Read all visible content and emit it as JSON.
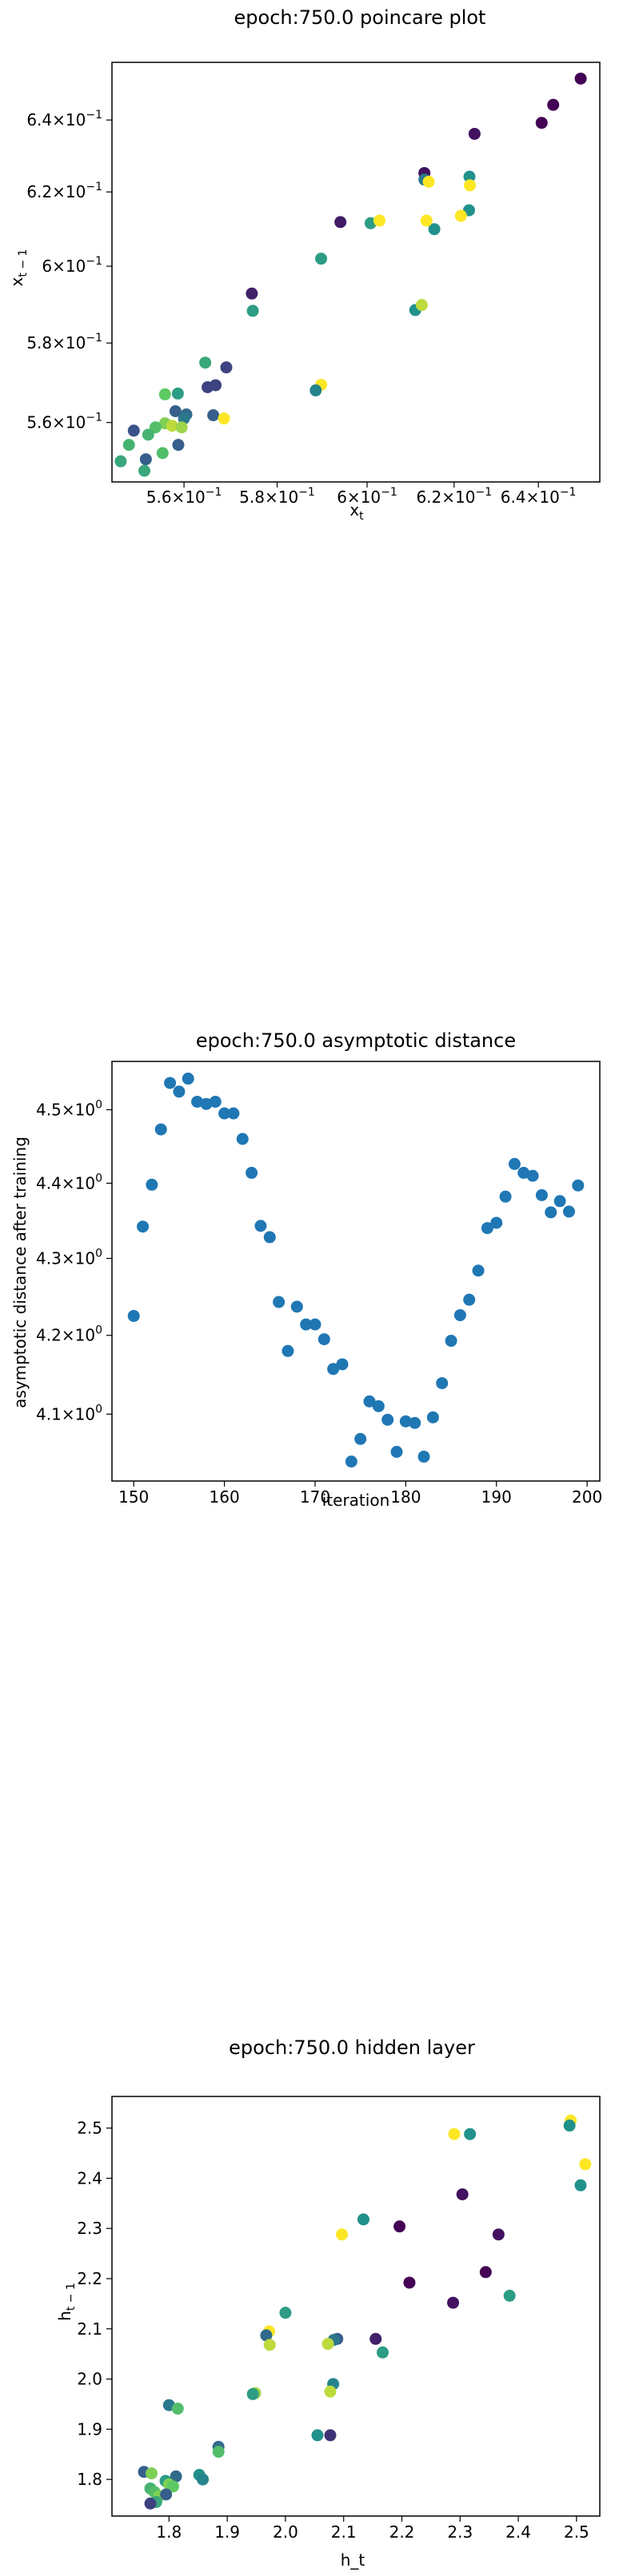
{
  "chart_data": [
    {
      "type": "scatter",
      "title": "epoch:750.0 poincare plot",
      "xlabel": "x_t",
      "ylabel": "x_{t-1}",
      "log_scale": true,
      "xlim": [
        0.545,
        0.655
      ],
      "ylim": [
        0.5455,
        0.6565
      ],
      "xticks": [
        0.56,
        0.58,
        0.6,
        0.62,
        0.64
      ],
      "xtick_labels": [
        "5.6",
        "5.8",
        "6",
        "6.2",
        "6.4"
      ],
      "yticks": [
        0.56,
        0.58,
        0.6,
        0.62,
        0.64
      ],
      "ytick_labels": [
        "5.6",
        "5.8",
        "6",
        "6.2",
        "6.4"
      ],
      "tick_label_base": "10",
      "tick_label_exp": "−1",
      "colormap": [
        "#440154",
        "#3b528b",
        "#21918c",
        "#5ec962",
        "#fde725"
      ],
      "points": [
        {
          "x": 0.6503,
          "y": 0.6518,
          "c": 0.0
        },
        {
          "x": 0.6436,
          "y": 0.6443,
          "c": 0.0
        },
        {
          "x": 0.6408,
          "y": 0.6392,
          "c": 0.0
        },
        {
          "x": 0.6248,
          "y": 0.6361,
          "c": 0.05
        },
        {
          "x": 0.6131,
          "y": 0.6252,
          "c": 0.05
        },
        {
          "x": 0.594,
          "y": 0.6118,
          "c": 0.08
        },
        {
          "x": 0.5745,
          "y": 0.5928,
          "c": 0.1
        },
        {
          "x": 0.6131,
          "y": 0.6234,
          "c": 0.4
        },
        {
          "x": 0.6236,
          "y": 0.6242,
          "c": 0.5
        },
        {
          "x": 0.6235,
          "y": 0.615,
          "c": 0.5
        },
        {
          "x": 0.6154,
          "y": 0.6099,
          "c": 0.5
        },
        {
          "x": 0.6008,
          "y": 0.6115,
          "c": 0.55
        },
        {
          "x": 0.5897,
          "y": 0.602,
          "c": 0.55
        },
        {
          "x": 0.5747,
          "y": 0.5883,
          "c": 0.55
        },
        {
          "x": 0.611,
          "y": 0.5885,
          "c": 0.5
        },
        {
          "x": 0.6125,
          "y": 0.5898,
          "c": 0.9
        },
        {
          "x": 0.6141,
          "y": 0.6228,
          "c": 1.0
        },
        {
          "x": 0.6237,
          "y": 0.6218,
          "c": 1.0
        },
        {
          "x": 0.6216,
          "y": 0.6135,
          "c": 1.0
        },
        {
          "x": 0.6136,
          "y": 0.6122,
          "c": 1.0
        },
        {
          "x": 0.6028,
          "y": 0.6122,
          "c": 1.0
        },
        {
          "x": 0.5897,
          "y": 0.5694,
          "c": 1.0
        },
        {
          "x": 0.5885,
          "y": 0.568,
          "c": 0.45
        },
        {
          "x": 0.569,
          "y": 0.5738,
          "c": 0.2
        },
        {
          "x": 0.5667,
          "y": 0.5693,
          "c": 0.2
        },
        {
          "x": 0.565,
          "y": 0.5688,
          "c": 0.2
        },
        {
          "x": 0.5645,
          "y": 0.575,
          "c": 0.6
        },
        {
          "x": 0.5662,
          "y": 0.5618,
          "c": 0.3
        },
        {
          "x": 0.5685,
          "y": 0.561,
          "c": 1.0
        },
        {
          "x": 0.5587,
          "y": 0.5672,
          "c": 0.55
        },
        {
          "x": 0.556,
          "y": 0.567,
          "c": 0.75
        },
        {
          "x": 0.5582,
          "y": 0.5628,
          "c": 0.3
        },
        {
          "x": 0.5605,
          "y": 0.562,
          "c": 0.35
        },
        {
          "x": 0.56,
          "y": 0.561,
          "c": 0.4
        },
        {
          "x": 0.556,
          "y": 0.5598,
          "c": 0.8
        },
        {
          "x": 0.5575,
          "y": 0.5592,
          "c": 0.9
        },
        {
          "x": 0.5595,
          "y": 0.5588,
          "c": 0.85
        },
        {
          "x": 0.554,
          "y": 0.5588,
          "c": 0.7
        },
        {
          "x": 0.5525,
          "y": 0.557,
          "c": 0.65
        },
        {
          "x": 0.5495,
          "y": 0.558,
          "c": 0.25
        },
        {
          "x": 0.5588,
          "y": 0.5545,
          "c": 0.3
        },
        {
          "x": 0.5555,
          "y": 0.5525,
          "c": 0.7
        },
        {
          "x": 0.552,
          "y": 0.551,
          "c": 0.3
        },
        {
          "x": 0.5485,
          "y": 0.5545,
          "c": 0.65
        },
        {
          "x": 0.5468,
          "y": 0.5505,
          "c": 0.6
        },
        {
          "x": 0.5517,
          "y": 0.5482,
          "c": 0.6
        }
      ]
    },
    {
      "type": "scatter",
      "title": "epoch:750.0 asymptotic distance",
      "xlabel": "iteration",
      "ylabel": "asymptotic distance after training",
      "log_scale": true,
      "color": "#1f77b4",
      "xlim": [
        147.6,
        201.4
      ],
      "ylim": [
        4.017,
        4.567
      ],
      "xticks": [
        150,
        160,
        170,
        180,
        190,
        200
      ],
      "yticks": [
        4.1,
        4.2,
        4.3,
        4.4,
        4.5
      ],
      "ytick_labels": [
        "4.1",
        "4.2",
        "4.3",
        "4.4",
        "4.5"
      ],
      "tick_label_base": "10",
      "tick_label_exp": "0",
      "x": [
        150,
        151,
        152,
        153,
        154,
        155,
        156,
        157,
        158,
        159,
        160,
        161,
        162,
        163,
        164,
        165,
        166,
        167,
        168,
        169,
        170,
        171,
        172,
        173,
        174,
        175,
        176,
        177,
        178,
        179,
        180,
        181,
        182,
        183,
        184,
        185,
        186,
        187,
        188,
        189,
        190,
        191,
        192,
        193,
        194,
        195,
        196,
        197,
        198,
        199
      ],
      "values": [
        4.225,
        4.342,
        4.398,
        4.473,
        4.537,
        4.525,
        4.543,
        4.511,
        4.508,
        4.511,
        4.495,
        4.495,
        4.46,
        4.414,
        4.343,
        4.328,
        4.243,
        4.18,
        4.237,
        4.214,
        4.214,
        4.195,
        4.157,
        4.163,
        4.041,
        4.069,
        4.116,
        4.11,
        4.093,
        4.053,
        4.091,
        4.089,
        4.047,
        4.096,
        4.139,
        4.193,
        4.226,
        4.246,
        4.284,
        4.34,
        4.347,
        4.382,
        4.426,
        4.414,
        4.41,
        4.384,
        4.361,
        4.376,
        4.362,
        4.397
      ]
    },
    {
      "type": "scatter",
      "title": "epoch:750.0 hidden layer",
      "xlabel": "h_t",
      "ylabel": "h_{t-1}",
      "xlim": [
        1.702,
        2.54
      ],
      "ylim": [
        1.727,
        2.563
      ],
      "xticks": [
        1.8,
        1.9,
        2.0,
        2.1,
        2.2,
        2.3,
        2.4,
        2.5
      ],
      "yticks": [
        1.8,
        1.9,
        2.0,
        2.1,
        2.2,
        2.3,
        2.4,
        2.5
      ],
      "xtick_labels": [
        "1.8",
        "1.9",
        "2.0",
        "2.1",
        "2.2",
        "2.3",
        "2.4",
        "2.5"
      ],
      "ytick_labels": [
        "1.8",
        "1.9",
        "2.0",
        "2.1",
        "2.2",
        "2.3",
        "2.4",
        "2.5"
      ],
      "colormap": [
        "#440154",
        "#3b528b",
        "#21918c",
        "#5ec962",
        "#fde725"
      ],
      "points": [
        {
          "x": 2.49,
          "y": 2.515,
          "c": 1.0
        },
        {
          "x": 2.488,
          "y": 2.505,
          "c": 0.5
        },
        {
          "x": 2.515,
          "y": 2.428,
          "c": 1.0
        },
        {
          "x": 2.507,
          "y": 2.386,
          "c": 0.5
        },
        {
          "x": 2.29,
          "y": 2.488,
          "c": 1.0
        },
        {
          "x": 2.317,
          "y": 2.488,
          "c": 0.5
        },
        {
          "x": 2.304,
          "y": 2.368,
          "c": 0.05
        },
        {
          "x": 2.134,
          "y": 2.318,
          "c": 0.5
        },
        {
          "x": 2.097,
          "y": 2.288,
          "c": 1.0
        },
        {
          "x": 2.196,
          "y": 2.304,
          "c": 0.0
        },
        {
          "x": 2.366,
          "y": 2.288,
          "c": 0.05
        },
        {
          "x": 2.213,
          "y": 2.192,
          "c": 0.0
        },
        {
          "x": 2.344,
          "y": 2.213,
          "c": 0.0
        },
        {
          "x": 2.288,
          "y": 2.152,
          "c": 0.05
        },
        {
          "x": 2.385,
          "y": 2.166,
          "c": 0.55
        },
        {
          "x": 2.0,
          "y": 2.132,
          "c": 0.55
        },
        {
          "x": 1.972,
          "y": 2.095,
          "c": 1.0
        },
        {
          "x": 1.967,
          "y": 2.087,
          "c": 0.35
        },
        {
          "x": 1.973,
          "y": 2.068,
          "c": 0.9
        },
        {
          "x": 2.089,
          "y": 2.08,
          "c": 0.3
        },
        {
          "x": 2.083,
          "y": 2.078,
          "c": 0.4
        },
        {
          "x": 2.073,
          "y": 2.07,
          "c": 0.9
        },
        {
          "x": 2.155,
          "y": 2.08,
          "c": 0.1
        },
        {
          "x": 2.167,
          "y": 2.053,
          "c": 0.55
        },
        {
          "x": 2.082,
          "y": 1.99,
          "c": 0.45
        },
        {
          "x": 2.077,
          "y": 1.975,
          "c": 0.9
        },
        {
          "x": 1.948,
          "y": 1.972,
          "c": 0.85
        },
        {
          "x": 1.944,
          "y": 1.97,
          "c": 0.55
        },
        {
          "x": 2.055,
          "y": 1.888,
          "c": 0.5
        },
        {
          "x": 2.077,
          "y": 1.888,
          "c": 0.15
        },
        {
          "x": 1.8,
          "y": 1.948,
          "c": 0.4
        },
        {
          "x": 1.815,
          "y": 1.941,
          "c": 0.7
        },
        {
          "x": 1.885,
          "y": 1.865,
          "c": 0.35
        },
        {
          "x": 1.885,
          "y": 1.855,
          "c": 0.7
        },
        {
          "x": 1.757,
          "y": 1.815,
          "c": 0.3
        },
        {
          "x": 1.77,
          "y": 1.812,
          "c": 0.8
        },
        {
          "x": 1.812,
          "y": 1.806,
          "c": 0.35
        },
        {
          "x": 1.852,
          "y": 1.809,
          "c": 0.5
        },
        {
          "x": 1.858,
          "y": 1.8,
          "c": 0.45
        },
        {
          "x": 1.794,
          "y": 1.797,
          "c": 0.55
        },
        {
          "x": 1.8,
          "y": 1.79,
          "c": 0.8
        },
        {
          "x": 1.807,
          "y": 1.786,
          "c": 0.75
        },
        {
          "x": 1.768,
          "y": 1.782,
          "c": 0.65
        },
        {
          "x": 1.775,
          "y": 1.775,
          "c": 0.7
        },
        {
          "x": 1.783,
          "y": 1.767,
          "c": 0.8
        },
        {
          "x": 1.795,
          "y": 1.77,
          "c": 0.3
        },
        {
          "x": 1.778,
          "y": 1.755,
          "c": 0.6
        },
        {
          "x": 1.768,
          "y": 1.752,
          "c": 0.2
        }
      ]
    }
  ]
}
